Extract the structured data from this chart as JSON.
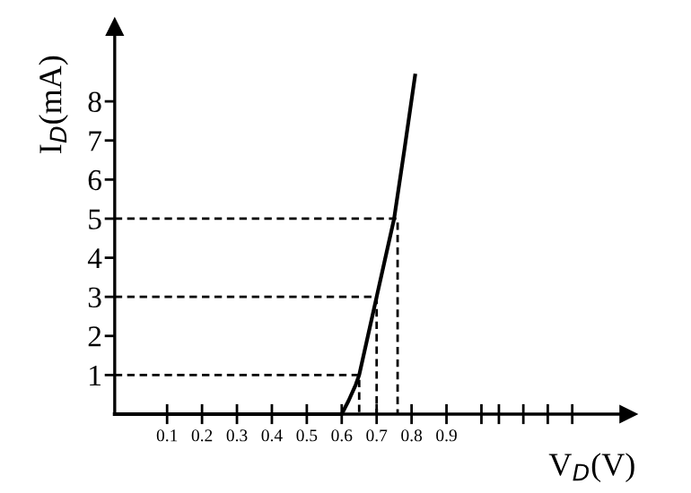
{
  "chart_data": {
    "type": "line",
    "xlabel": "V$_{D}$(V)",
    "ylabel": "I$_{D}$(mA)",
    "xlim": [
      -0.05,
      1.42
    ],
    "ylim": [
      0,
      9.9
    ],
    "xticks": [
      0.1,
      0.2,
      0.3,
      0.4,
      0.5,
      0.6,
      0.7,
      0.8,
      0.9,
      {
        "value": 1.0,
        "label": null
      },
      {
        "value": 1.05,
        "label": null
      },
      {
        "value": 1.12,
        "label": null
      },
      {
        "value": 1.19,
        "label": null
      },
      {
        "value": 1.26,
        "label": null
      }
    ],
    "yticks": [
      1,
      2,
      3,
      4,
      5,
      6,
      7,
      8
    ],
    "grid": false,
    "legend": false,
    "series": [
      {
        "color": "#000000",
        "line_style": "solid",
        "x": [
          -0.05,
          0.6,
          0.62,
          0.64,
          0.65,
          0.675,
          0.7,
          0.725,
          0.75,
          0.78,
          0.81
        ],
        "values": [
          0,
          0,
          0.35,
          0.75,
          1,
          2,
          3,
          4,
          5,
          6.8,
          8.66
        ]
      },
      {
        "color": "#000000",
        "line_style": "dashed",
        "x": [
          -0.05,
          0.65,
          0.65
        ],
        "values": [
          1,
          1,
          0
        ]
      },
      {
        "color": "#000000",
        "line_style": "dashed",
        "x": [
          -0.05,
          0.7,
          0.7
        ],
        "values": [
          3,
          3,
          0
        ]
      },
      {
        "color": "#000000",
        "line_style": "dashed",
        "x": [
          -0.05,
          0.76,
          0.76
        ],
        "values": [
          5,
          5,
          0
        ]
      }
    ]
  }
}
